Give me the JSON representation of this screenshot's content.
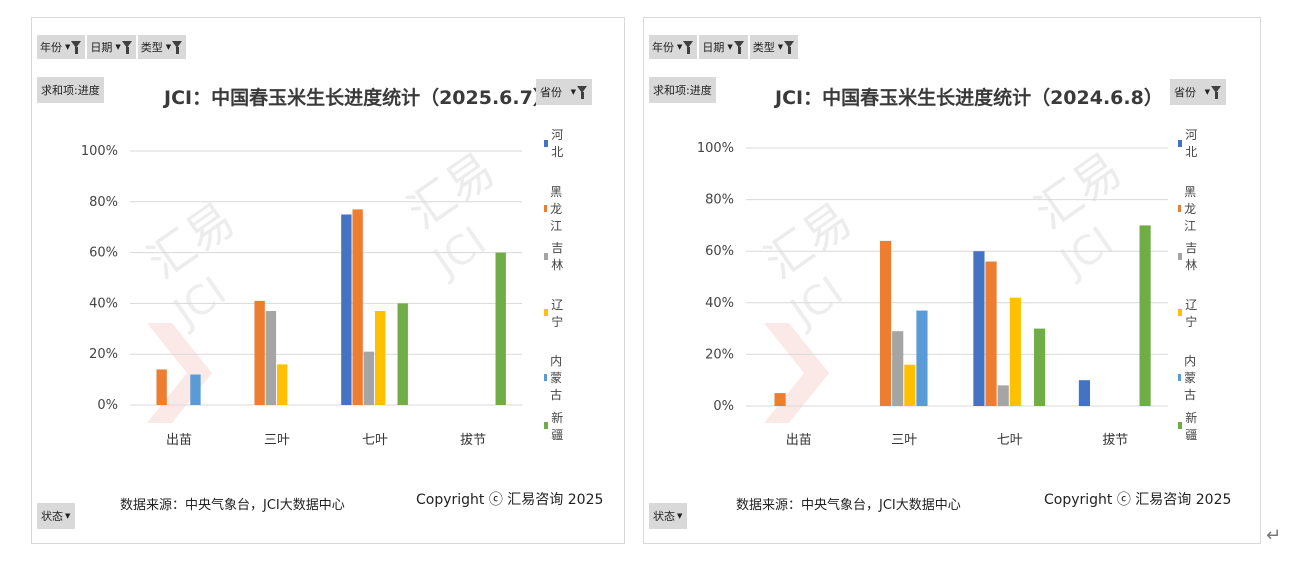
{
  "panels": [
    {
      "filters": [
        {
          "label": "年份"
        },
        {
          "label": "日期"
        },
        {
          "label": "类型"
        }
      ],
      "value_field": "求和项:进度",
      "province_filter": "省份",
      "state_filter": "状态",
      "source": "数据来源：中央气象台，JCI大数据中心",
      "copyright": "Copyright ⓒ 汇易咨询 2025"
    },
    {
      "filters": [
        {
          "label": "年份"
        },
        {
          "label": "日期"
        },
        {
          "label": "类型"
        }
      ],
      "value_field": "求和项:进度",
      "province_filter": "省份",
      "state_filter": "状态",
      "source": "数据来源：中央气象台，JCI大数据中心",
      "copyright": "Copyright ⓒ 汇易咨询 2025"
    }
  ],
  "chart_data": [
    {
      "type": "bar",
      "title": "JCI：中国春玉米生长进度统计（2025.6.7）",
      "categories": [
        "出苗",
        "三叶",
        "七叶",
        "拔节"
      ],
      "yticks": [
        "0%",
        "20%",
        "40%",
        "60%",
        "80%",
        "100%"
      ],
      "ylim": [
        0,
        100
      ],
      "grid": true,
      "legend_position": "right",
      "series": [
        {
          "name": "河北",
          "color": "#4472C4",
          "values": [
            null,
            null,
            75,
            null
          ]
        },
        {
          "name": "黑龙江",
          "color": "#ED7D31",
          "values": [
            14,
            41,
            77,
            null
          ]
        },
        {
          "name": "吉林",
          "color": "#A5A5A5",
          "values": [
            null,
            37,
            21,
            null
          ]
        },
        {
          "name": "辽宁",
          "color": "#FFC000",
          "values": [
            null,
            16,
            37,
            null
          ]
        },
        {
          "name": "内蒙古",
          "color": "#5B9BD5",
          "values": [
            12,
            null,
            null,
            null
          ]
        },
        {
          "name": "新疆",
          "color": "#70AD47",
          "values": [
            null,
            null,
            40,
            60
          ]
        }
      ]
    },
    {
      "type": "bar",
      "title": "JCI：中国春玉米生长进度统计（2024.6.8）",
      "categories": [
        "出苗",
        "三叶",
        "七叶",
        "拔节"
      ],
      "yticks": [
        "0%",
        "20%",
        "40%",
        "60%",
        "80%",
        "100%"
      ],
      "ylim": [
        0,
        100
      ],
      "grid": true,
      "legend_position": "right",
      "series": [
        {
          "name": "河北",
          "color": "#4472C4",
          "values": [
            null,
            null,
            60,
            10
          ]
        },
        {
          "name": "黑龙江",
          "color": "#ED7D31",
          "values": [
            5,
            64,
            56,
            null
          ]
        },
        {
          "name": "吉林",
          "color": "#A5A5A5",
          "values": [
            null,
            29,
            8,
            null
          ]
        },
        {
          "name": "辽宁",
          "color": "#FFC000",
          "values": [
            null,
            16,
            42,
            null
          ]
        },
        {
          "name": "内蒙古",
          "color": "#5B9BD5",
          "values": [
            null,
            37,
            null,
            null
          ]
        },
        {
          "name": "新疆",
          "color": "#70AD47",
          "values": [
            null,
            null,
            30,
            70
          ]
        }
      ]
    }
  ]
}
